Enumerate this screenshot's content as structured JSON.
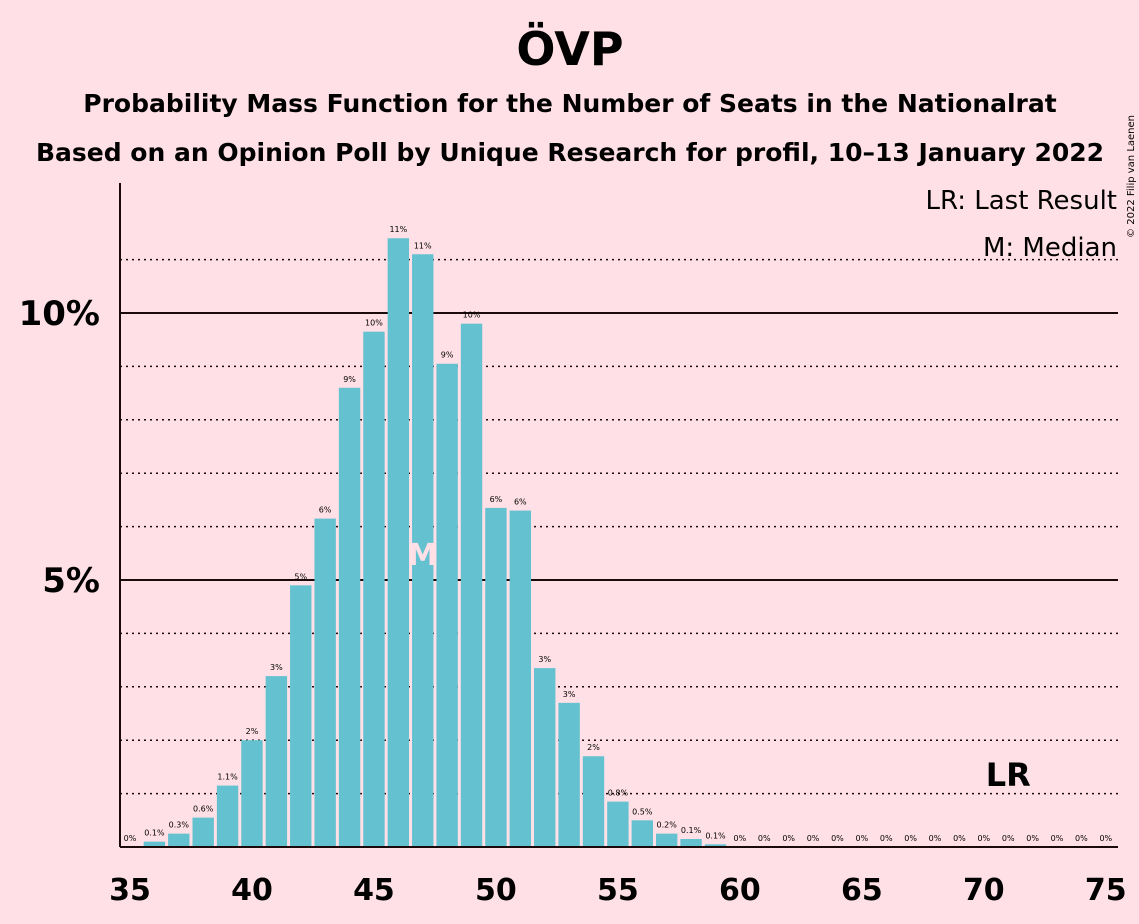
{
  "chart_data": {
    "type": "bar",
    "title": "ÖVP",
    "subtitle_1": "Probability Mass Function for the Number of Seats in the Nationalrat",
    "subtitle_2": "Based on an Opinion Poll by Unique Research for profil, 10–13 January 2022",
    "credit": "© 2022 Filip van Laenen",
    "x": [
      35,
      36,
      37,
      38,
      39,
      40,
      41,
      42,
      43,
      44,
      45,
      46,
      47,
      48,
      49,
      50,
      51,
      52,
      53,
      54,
      55,
      56,
      57,
      58,
      59,
      60,
      61,
      62,
      63,
      64,
      65,
      66,
      67,
      68,
      69,
      70,
      71,
      72,
      73,
      74,
      75
    ],
    "values": [
      0,
      0.1,
      0.25,
      0.55,
      1.15,
      2.0,
      3.2,
      4.9,
      6.15,
      8.6,
      9.65,
      11.4,
      11.1,
      9.05,
      9.8,
      6.35,
      6.3,
      3.35,
      2.7,
      1.7,
      0.85,
      0.5,
      0.25,
      0.15,
      0.05,
      0,
      0,
      0,
      0,
      0,
      0,
      0,
      0,
      0,
      0,
      0,
      0,
      0,
      0,
      0,
      0
    ],
    "bar_labels": [
      "0%",
      "0.1%",
      "0.3%",
      "0.6%",
      "1.1%",
      "2%",
      "3%",
      "5%",
      "6%",
      "9%",
      "10%",
      "11%",
      "11%",
      "9%",
      "10%",
      "6%",
      "6%",
      "3%",
      "3%",
      "2%",
      "0.8%",
      "0.5%",
      "0.2%",
      "0.1%",
      "0.1%",
      "0%",
      "0%",
      "0%",
      "0%",
      "0%",
      "0%",
      "0%",
      "0%",
      "0%",
      "0%",
      "0%",
      "0%",
      "0%",
      "0%",
      "0%",
      "0%"
    ],
    "x_ticks": [
      35,
      40,
      45,
      50,
      55,
      60,
      65,
      70,
      75
    ],
    "y_ticks": [
      5,
      10
    ],
    "y_tick_labels": [
      "5%",
      "10%"
    ],
    "ylim": [
      0,
      12
    ],
    "major_grid": [
      5,
      10
    ],
    "minor_grid": [
      1,
      2,
      3,
      4,
      6,
      7,
      8,
      9,
      11
    ],
    "median": 47,
    "median_label": "M",
    "last_result": 71,
    "last_result_label": "LR",
    "legend": [
      "LR: Last Result",
      "M: Median"
    ],
    "legend_position": "top-right",
    "bar_color": "#64c1d0",
    "background_color": "#ffe0e6"
  }
}
